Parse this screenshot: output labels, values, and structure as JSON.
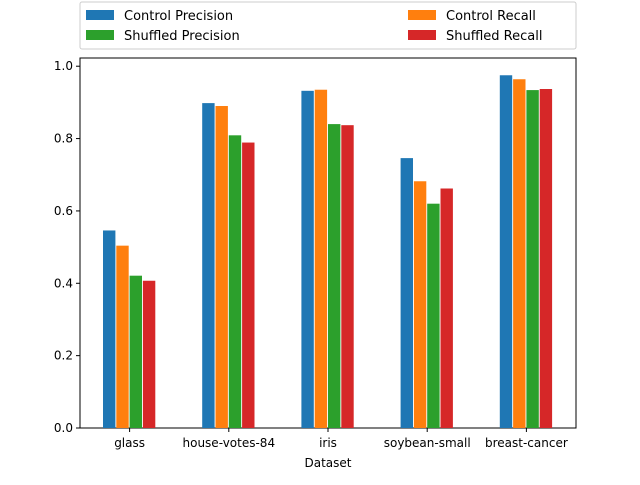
{
  "chart_data": {
    "type": "bar",
    "title": "",
    "xlabel": "Dataset",
    "ylabel": "",
    "categories": [
      "glass",
      "house-votes-84",
      "iris",
      "soybean-small",
      "breast-cancer"
    ],
    "series": [
      {
        "name": "Control Precision",
        "color": "#1f77b4",
        "values": [
          0.546,
          0.898,
          0.932,
          0.746,
          0.975
        ]
      },
      {
        "name": "Control Recall",
        "color": "#ff7f0e",
        "values": [
          0.504,
          0.89,
          0.935,
          0.682,
          0.964
        ]
      },
      {
        "name": "Shuffled Precision",
        "color": "#2ca02c",
        "values": [
          0.421,
          0.809,
          0.84,
          0.62,
          0.934
        ]
      },
      {
        "name": "Shuffled Recall",
        "color": "#d62728",
        "values": [
          0.407,
          0.789,
          0.837,
          0.662,
          0.937
        ]
      }
    ],
    "ylim": [
      0,
      1.0227
    ],
    "yticks": [
      "0.0",
      "0.2",
      "0.4",
      "0.6",
      "0.8",
      "1.0"
    ],
    "ytick_values": [
      0,
      0.2,
      0.4,
      0.6,
      0.8,
      1.0
    ],
    "grid": false,
    "legend": {
      "placement": "top",
      "columns": 2
    }
  }
}
